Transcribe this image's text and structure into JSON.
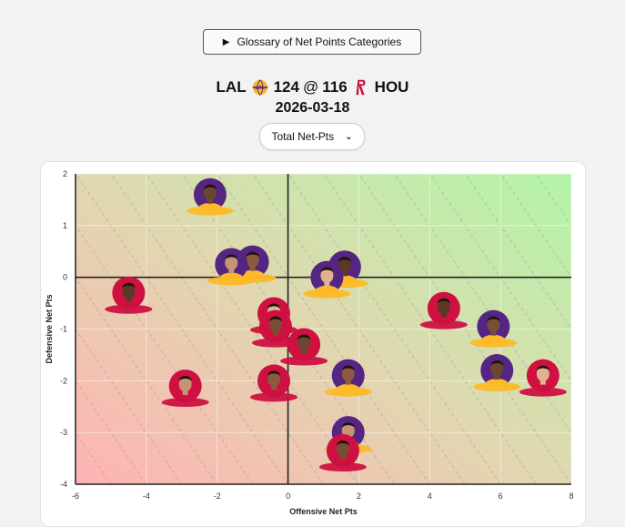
{
  "glossary": {
    "icon": "play-triangle-icon",
    "label": "Glossary of Net Points Categories"
  },
  "game": {
    "away_team": "LAL",
    "away_score": "124",
    "separator": "@",
    "home_score": "116",
    "home_team": "HOU",
    "date": "2026-03-18",
    "colors": {
      "away": "#552583",
      "away_gold": "#FDB927",
      "home": "#CE1141"
    }
  },
  "metric_select": {
    "selected": "Total Net-Pts",
    "icon": "chevron-down-icon"
  },
  "chart_data": {
    "type": "scatter",
    "xlabel": "Offensive Net Pts",
    "ylabel": "Defensive Net Pts",
    "xlim": [
      -6,
      8
    ],
    "ylim": [
      -4,
      2
    ],
    "xticks": [
      -6,
      -4,
      -2,
      0,
      2,
      4,
      6,
      8
    ],
    "yticks": [
      2,
      1,
      0,
      -1,
      -2,
      -3,
      -4
    ],
    "background": "red-to-green gradient (bottom-left red, top-right green), dashed diagonal iso-total lines",
    "series": [
      {
        "team": "LAL",
        "color": "#552583",
        "points": [
          {
            "x": -2.2,
            "y": 1.6
          },
          {
            "x": -1.0,
            "y": 0.3
          },
          {
            "x": -1.6,
            "y": 0.25
          },
          {
            "x": 1.6,
            "y": 0.2
          },
          {
            "x": 1.1,
            "y": 0.0
          },
          {
            "x": 5.8,
            "y": -0.95
          },
          {
            "x": 5.9,
            "y": -1.8
          },
          {
            "x": 1.7,
            "y": -1.9
          },
          {
            "x": 1.7,
            "y": -3.0
          }
        ]
      },
      {
        "team": "HOU",
        "color": "#CE1141",
        "points": [
          {
            "x": -4.5,
            "y": -0.3
          },
          {
            "x": -0.4,
            "y": -0.7
          },
          {
            "x": -0.35,
            "y": -0.95
          },
          {
            "x": 0.45,
            "y": -1.3
          },
          {
            "x": -0.4,
            "y": -2.0
          },
          {
            "x": -2.9,
            "y": -2.1
          },
          {
            "x": 4.4,
            "y": -0.6
          },
          {
            "x": 7.2,
            "y": -1.9
          },
          {
            "x": 1.55,
            "y": -3.35
          }
        ]
      }
    ]
  }
}
